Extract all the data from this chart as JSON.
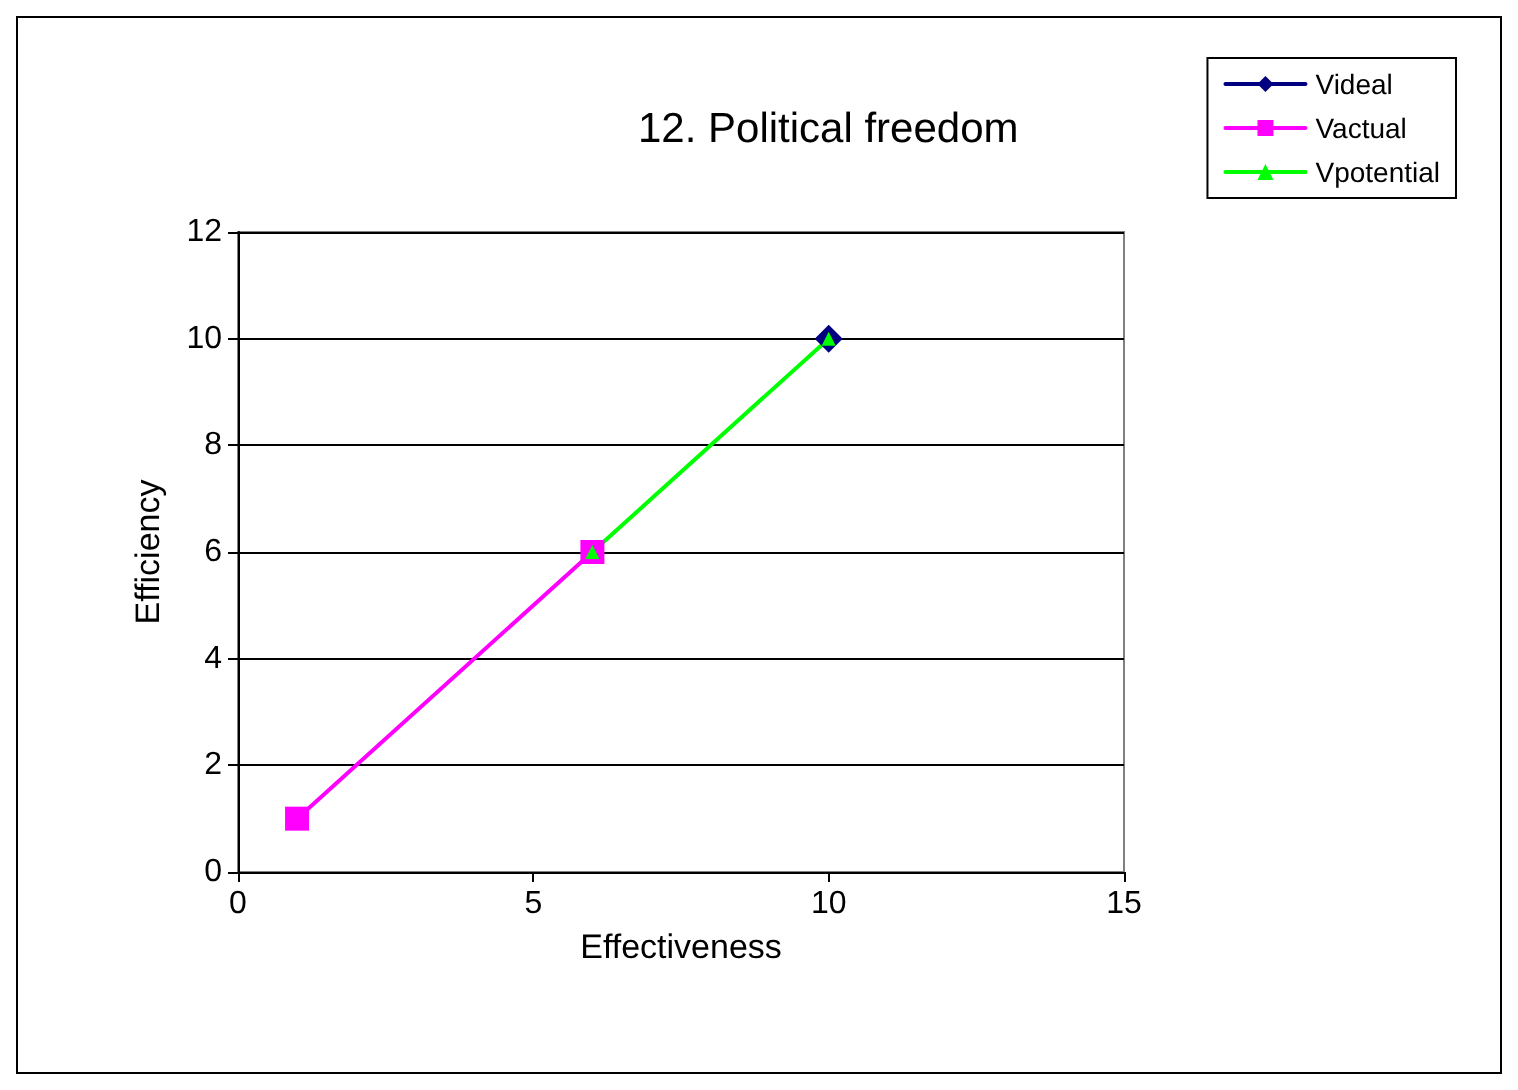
{
  "chart_data": {
    "type": "line",
    "title": "12. Political freedom",
    "xlabel": "Effectiveness",
    "ylabel": "Efficiency",
    "xlim": [
      0,
      15
    ],
    "xticks": [
      0,
      5,
      10,
      15
    ],
    "ylim": [
      0,
      12
    ],
    "yticks": [
      0,
      2,
      4,
      6,
      8,
      10,
      12
    ],
    "grid": "y",
    "legend": "top right",
    "series": [
      {
        "name": "Videal",
        "color": "#000080",
        "x": [
          10
        ],
        "values": [
          10
        ],
        "marker": "diamond"
      },
      {
        "name": "Vactual",
        "color": "#ff00ff",
        "x": [
          1,
          6
        ],
        "values": [
          1,
          6
        ],
        "marker": "square"
      },
      {
        "name": "Vpotential",
        "color": "#00ff00",
        "x": [
          6,
          10
        ],
        "values": [
          6,
          10
        ],
        "marker": "triangle"
      }
    ]
  }
}
